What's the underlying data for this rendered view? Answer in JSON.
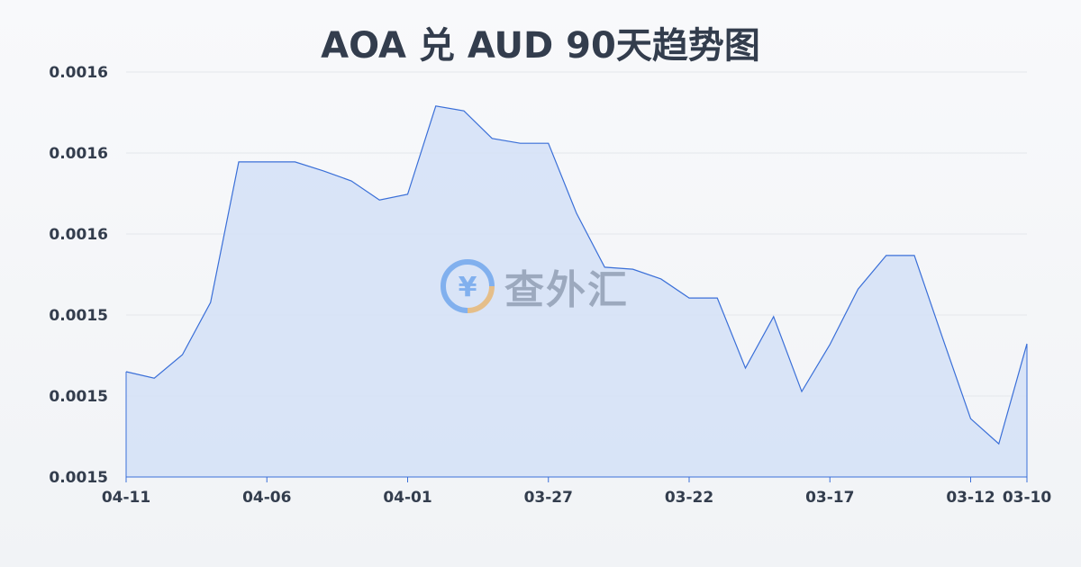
{
  "chart_data": {
    "type": "area",
    "title": "AOA 兑 AUD 90天趋势图",
    "xlabel": "",
    "ylabel": "",
    "x": [
      "04-11",
      "04-10",
      "04-09",
      "04-08",
      "04-07",
      "04-06",
      "04-05",
      "04-04",
      "04-03",
      "04-02",
      "04-01",
      "03-31",
      "03-30",
      "03-29",
      "03-28",
      "03-27",
      "03-26",
      "03-25",
      "03-24",
      "03-23",
      "03-22",
      "03-21",
      "03-20",
      "03-19",
      "03-18",
      "03-17",
      "03-16",
      "03-15",
      "03-14",
      "03-13",
      "03-12",
      "03-11",
      "03-10"
    ],
    "values": [
      0.001526,
      0.0015244,
      0.0015302,
      0.0015431,
      0.0015778,
      0.0015778,
      0.0015778,
      0.0015756,
      0.0015731,
      0.0015684,
      0.0015698,
      0.0015916,
      0.0015904,
      0.0015836,
      0.0015824,
      0.0015824,
      0.0015651,
      0.0015518,
      0.0015513,
      0.0015489,
      0.0015442,
      0.0015442,
      0.0015269,
      0.0015396,
      0.0015211,
      0.0015327,
      0.0015464,
      0.0015547,
      0.0015547,
      0.0015344,
      0.0015144,
      0.0015082,
      0.0015329
    ],
    "x_ticks": [
      "04-11",
      "04-06",
      "04-01",
      "03-27",
      "03-22",
      "03-17",
      "03-12",
      "03-10"
    ],
    "y_ticks": [
      0.0015,
      0.00152,
      0.00154,
      0.00156,
      0.00158,
      0.0016
    ],
    "y_tick_labels": [
      "0.0015",
      "0.0015",
      "0.0015",
      "0.0016",
      "0.0016",
      "0.0016"
    ],
    "ylim": [
      0.0015,
      0.0016
    ],
    "grid": true,
    "colors": {
      "line": "#3a6fd8",
      "fill": "#d3e0f7",
      "grid": "#e3e6ea"
    }
  },
  "watermark": {
    "text": "查外汇",
    "icon": "yen-exchange-icon"
  }
}
